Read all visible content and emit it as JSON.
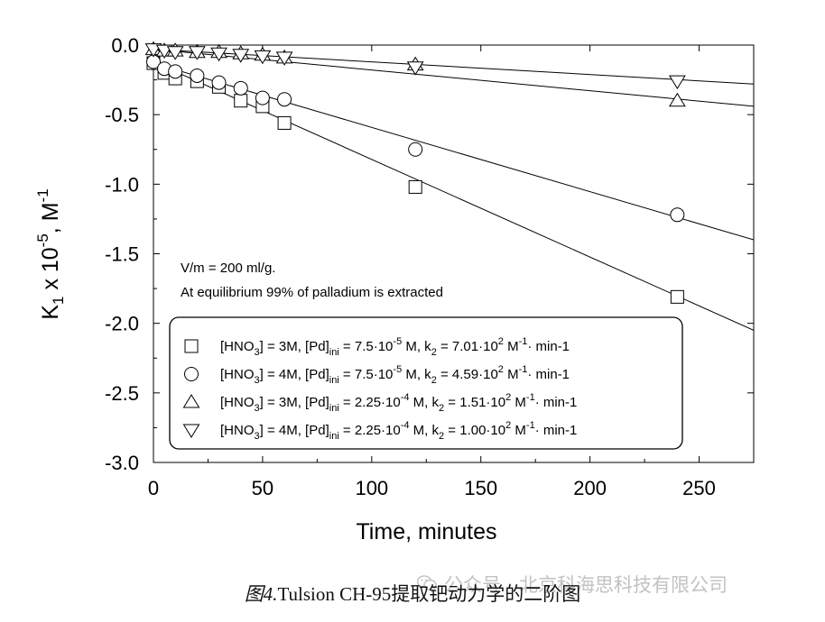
{
  "chart_data": {
    "type": "scatter",
    "xlabel": "Time, minutes",
    "ylabel": {
      "base": "K",
      "sub": "1",
      "mid": " x 10",
      "sup": "-5",
      "tail": ",  M",
      "sup2": "-1"
    },
    "xlim": [
      0,
      275
    ],
    "ylim": [
      -3.0,
      0.0
    ],
    "xticks": [
      0,
      50,
      100,
      150,
      200,
      250
    ],
    "xtick_labels": [
      "0",
      "50",
      "100",
      "150",
      "200",
      "250"
    ],
    "yticks": [
      0.0,
      -0.5,
      -1.0,
      -1.5,
      -2.0,
      -2.5,
      -3.0
    ],
    "ytick_labels": [
      "0.0",
      "-0.5",
      "-1.0",
      "-1.5",
      "-2.0",
      "-2.5",
      "-3.0"
    ],
    "grid": false,
    "legend_position": "bottom-right",
    "annotations": [
      "V/m = 200 ml/g.",
      "At equilibrium 99% of palladium is extracted"
    ],
    "series": [
      {
        "marker": "square",
        "legend": {
          "p1": "[HNO",
          "s1": "3",
          "p2": "] = 3M,  [Pd]",
          "s2": "ini",
          "p3": " = 7.5·10",
          "e1": "-5",
          "p4": " M,  k",
          "s3": "2",
          "p5": " = 7.01·10",
          "e2": "2",
          "p6": " M",
          "e3": "-1",
          "p7": "· min-1"
        },
        "x": [
          0,
          5,
          10,
          20,
          30,
          40,
          50,
          60,
          120,
          240
        ],
        "y": [
          -0.13,
          -0.2,
          -0.24,
          -0.26,
          -0.3,
          -0.4,
          -0.44,
          -0.56,
          -1.02,
          -1.81
        ],
        "fit": [
          [
            0,
            -0.12
          ],
          [
            275,
            -2.05
          ]
        ]
      },
      {
        "marker": "circle",
        "legend": {
          "p1": "[HNO",
          "s1": "3",
          "p2": "] = 4M,  [Pd]",
          "s2": "ini",
          "p3": " = 7.5·10",
          "e1": "-5",
          "p4": " M,  k",
          "s3": "2",
          "p5": " = 4.59·10",
          "e2": "2",
          "p6": " M",
          "e3": "-1",
          "p7": "· min-1"
        },
        "x": [
          0,
          5,
          10,
          20,
          30,
          40,
          50,
          60,
          120,
          240
        ],
        "y": [
          -0.12,
          -0.17,
          -0.19,
          -0.22,
          -0.27,
          -0.31,
          -0.38,
          -0.39,
          -0.75,
          -1.22
        ],
        "fit": [
          [
            0,
            -0.13
          ],
          [
            275,
            -1.4
          ]
        ]
      },
      {
        "marker": "triangle-up",
        "legend": {
          "p1": "[HNO",
          "s1": "3",
          "p2": "] = 3M,  [Pd]",
          "s2": "ini",
          "p3": " = 2.25·10",
          "e1": "-4",
          "p4": " M,  k",
          "s3": "2",
          "p5": " = 1.51·10",
          "e2": "2",
          "p6": " M",
          "e3": "-1",
          "p7": "· min-1"
        },
        "x": [
          0,
          5,
          10,
          20,
          30,
          40,
          50,
          60,
          120,
          240
        ],
        "y": [
          -0.03,
          -0.04,
          -0.04,
          -0.05,
          -0.05,
          -0.06,
          -0.07,
          -0.09,
          -0.14,
          -0.4
        ],
        "fit": [
          [
            0,
            -0.03
          ],
          [
            275,
            -0.44
          ]
        ]
      },
      {
        "marker": "triangle-down",
        "legend": {
          "p1": "[HNO",
          "s1": "3",
          "p2": "] = 4M,  [Pd]",
          "s2": "ini",
          "p3": " = 2.25·10",
          "e1": "-4",
          "p4": " M,  k",
          "s3": "2",
          "p5": " = 1.00·10",
          "e2": "2",
          "p6": " M",
          "e3": "-1",
          "p7": "·  min-1"
        },
        "x": [
          0,
          5,
          10,
          20,
          30,
          40,
          50,
          60,
          120,
          240
        ],
        "y": [
          -0.03,
          -0.04,
          -0.05,
          -0.05,
          -0.06,
          -0.07,
          -0.08,
          -0.09,
          -0.16,
          -0.26
        ],
        "fit": [
          [
            0,
            -0.03
          ],
          [
            275,
            -0.28
          ]
        ]
      }
    ]
  },
  "caption": {
    "lead": "图4.",
    "rest": "Tulsion CH-95提取钯动力学的二阶图"
  },
  "watermark": "公众号 · 北京科海思科技有限公司"
}
